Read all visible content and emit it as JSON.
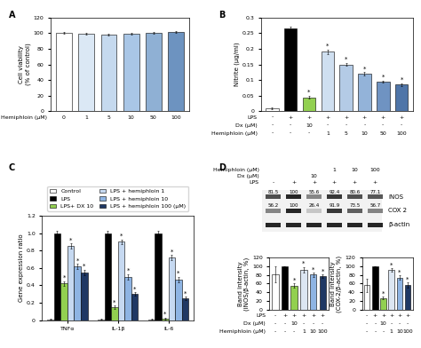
{
  "chart_data": [
    {
      "type": "bar",
      "title": "A",
      "y_label": "Cell viability\n(% of control)",
      "values": [
        100,
        99,
        98,
        99,
        100,
        101
      ],
      "errors": [
        1,
        1,
        1,
        1,
        1,
        1
      ],
      "colors": [
        "#ffffff",
        "#dbe8f5",
        "#c5d9ee",
        "#a9c6e6",
        "#8fb0d4",
        "#6d93c0"
      ],
      "ylim": [
        0,
        120
      ],
      "yticks": [
        0,
        20,
        40,
        60,
        80,
        100,
        120
      ],
      "tick_labels": "y",
      "treatment_rows": [
        {
          "label": "Hemiphloin (μM)",
          "values": [
            "0",
            "1",
            "5",
            "10",
            "50",
            "100"
          ]
        }
      ]
    },
    {
      "type": "bar",
      "title": "B",
      "y_label": "Nitrite (μg/ml)",
      "values": [
        0.01,
        0.265,
        0.045,
        0.19,
        0.15,
        0.12,
        0.095,
        0.085
      ],
      "errors": [
        0.003,
        0.005,
        0.004,
        0.006,
        0.005,
        0.005,
        0.004,
        0.004
      ],
      "colors": [
        "#ffffff",
        "#000000",
        "#92d050",
        "#cfdff0",
        "#b4cbe6",
        "#93b3d9",
        "#6f93c2",
        "#4f75a8"
      ],
      "significance": [
        null,
        null,
        "*",
        "*",
        "*",
        "*",
        "*",
        "*"
      ],
      "ylim": [
        0,
        0.3
      ],
      "yticks": [
        0,
        0.05,
        0.1,
        0.15,
        0.2,
        0.25,
        0.3
      ],
      "tick_labels": "y",
      "treatment_rows": [
        {
          "label": "LPS",
          "values": [
            "-",
            "+",
            "+",
            "+",
            "+",
            "+",
            "+",
            "+"
          ]
        },
        {
          "label": "Dx (μM)",
          "values": [
            "-",
            "-",
            "10",
            "-",
            "-",
            "-",
            "-",
            "-"
          ]
        },
        {
          "label": "Hemiphloin (μM)",
          "values": [
            "-",
            "-",
            "-",
            "1",
            "5",
            "10",
            "50",
            "100"
          ]
        }
      ]
    },
    {
      "type": "grouped_bar",
      "title": "C",
      "y_label": "Gene expression ratio",
      "categories": [
        "TNFα",
        "IL-1β",
        "IL-6"
      ],
      "series": [
        {
          "name": "Control",
          "color": "#ffffff",
          "values": [
            0.01,
            0.01,
            0.01
          ],
          "errors": [
            0.003,
            0.003,
            0.003
          ],
          "significance": [
            null,
            null,
            null
          ]
        },
        {
          "name": "LPS",
          "color": "#000000",
          "values": [
            1.0,
            1.0,
            1.0
          ],
          "errors": [
            0.03,
            0.03,
            0.03
          ],
          "significance": [
            null,
            null,
            null
          ]
        },
        {
          "name": "LPS+ DX 10",
          "color": "#92d050",
          "values": [
            0.42,
            0.15,
            0.02
          ],
          "errors": [
            0.03,
            0.02,
            0.01
          ],
          "significance": [
            "*",
            "*",
            "*"
          ]
        },
        {
          "name": "LPS + hemiphloin 1",
          "color": "#c6d9f1",
          "values": [
            0.85,
            0.9,
            0.72
          ],
          "errors": [
            0.03,
            0.03,
            0.03
          ],
          "significance": [
            "*",
            "*",
            "*"
          ]
        },
        {
          "name": "LPS + hemiphloin 10",
          "color": "#8eb4e3",
          "values": [
            0.62,
            0.5,
            0.47
          ],
          "errors": [
            0.03,
            0.03,
            0.03
          ],
          "significance": [
            "*",
            "*",
            "*"
          ]
        },
        {
          "name": "LPS + hemiphloin 100 (μM)",
          "color": "#1f3864",
          "values": [
            0.55,
            0.3,
            0.25
          ],
          "errors": [
            0.03,
            0.02,
            0.02
          ],
          "significance": [
            "*",
            "*",
            "*"
          ]
        }
      ],
      "ylim": [
        0,
        1.2
      ],
      "yticks": [
        0,
        0.2,
        0.4,
        0.6,
        0.8,
        1.0,
        1.2
      ],
      "legend": "top"
    },
    {
      "type": "western_blot",
      "title": "D",
      "header_rows": [
        {
          "label": "Hemiphloin (μM)",
          "values": [
            null,
            null,
            null,
            "1",
            "10",
            "100"
          ]
        },
        {
          "label": "Dx (μM)",
          "values": [
            null,
            null,
            "10",
            null,
            null,
            null
          ]
        },
        {
          "label": "LPS",
          "values": [
            "-",
            "+",
            "+",
            "+",
            "+",
            "+"
          ]
        }
      ],
      "bands": [
        {
          "name": "iNOS",
          "values": [
            81.5,
            100,
            55.6,
            92.4,
            80.6,
            77.1
          ]
        },
        {
          "name": "COX 2",
          "values": [
            56.2,
            100,
            26.4,
            91.9,
            73.5,
            56.7
          ]
        },
        {
          "name": "β-actin",
          "values": null
        }
      ]
    },
    {
      "type": "bar",
      "y_label": "Band intensity\n(iNOS/β-actin, %)",
      "values": [
        81.5,
        100,
        55.6,
        92.4,
        80.6,
        77.1
      ],
      "errors": [
        18,
        0,
        5,
        6,
        5,
        4
      ],
      "colors": [
        "#ffffff",
        "#000000",
        "#92d050",
        "#dce6f2",
        "#8eb4e3",
        "#1f3864"
      ],
      "significance": [
        null,
        null,
        "*",
        "*",
        "*",
        "*"
      ],
      "ylim": [
        0,
        120
      ],
      "yticks": [
        0,
        20,
        40,
        60,
        80,
        100,
        120
      ],
      "tick_labels": "y",
      "treatment_rows": [
        {
          "label": "LPS",
          "values": [
            "-",
            "+",
            "+",
            "+",
            "+",
            "+"
          ]
        },
        {
          "label": "Dx (μM)",
          "values": [
            "-",
            "-",
            "10",
            "-",
            "-",
            "-"
          ]
        },
        {
          "label": "Hemiphloin (μM)",
          "values": [
            "-",
            "-",
            "-",
            "1",
            "10",
            "100"
          ]
        }
      ]
    },
    {
      "type": "bar",
      "y_label": "Band intensity\n(COX-2/β-actin, %)",
      "values": [
        56.2,
        100,
        26.4,
        91.9,
        73.5,
        56.7
      ],
      "errors": [
        15,
        0,
        3,
        4,
        5,
        6
      ],
      "colors": [
        "#ffffff",
        "#000000",
        "#92d050",
        "#dce6f2",
        "#8eb4e3",
        "#1f3864"
      ],
      "significance": [
        null,
        null,
        "*",
        "*",
        "*",
        "*"
      ],
      "ylim": [
        0,
        120
      ],
      "yticks": [
        0,
        20,
        40,
        60,
        80,
        100,
        120
      ],
      "tick_labels": "y",
      "treatment_rows": [
        {
          "label": null,
          "values": [
            "-",
            "+",
            "+",
            "+",
            "+",
            "+"
          ]
        },
        {
          "label": null,
          "values": [
            "-",
            "-",
            "10",
            "-",
            "-",
            "-"
          ]
        },
        {
          "label": null,
          "values": [
            "-",
            "-",
            "-",
            "1",
            "10",
            "100"
          ]
        }
      ]
    }
  ]
}
